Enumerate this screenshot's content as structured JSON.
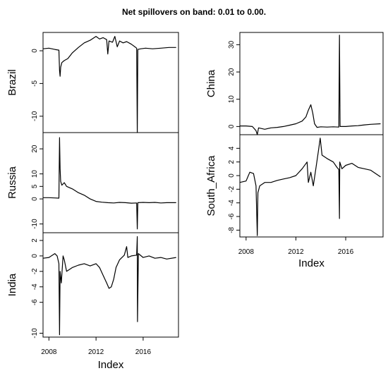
{
  "title": "Net spillovers on band: 0.01 to 0.00.",
  "chart_data": [
    {
      "type": "line",
      "ylabel": "Brazil",
      "xlim": [
        2007.5,
        2019.0
      ],
      "ylim": [
        -12.5,
        2.8
      ],
      "yticks": [
        0,
        -5,
        -10
      ],
      "xticks": [],
      "points": [
        [
          2007.5,
          0.3
        ],
        [
          2008.0,
          0.4
        ],
        [
          2008.5,
          0.2
        ],
        [
          2008.85,
          0.1
        ],
        [
          2008.9,
          -3.0
        ],
        [
          2008.95,
          -3.9
        ],
        [
          2009.0,
          -2.5
        ],
        [
          2009.1,
          -1.8
        ],
        [
          2009.3,
          -1.5
        ],
        [
          2009.6,
          -1.2
        ],
        [
          2010.0,
          -0.3
        ],
        [
          2010.5,
          0.5
        ],
        [
          2011.0,
          1.2
        ],
        [
          2011.5,
          1.6
        ],
        [
          2012.0,
          2.2
        ],
        [
          2012.3,
          1.8
        ],
        [
          2012.6,
          2.0
        ],
        [
          2012.9,
          1.7
        ],
        [
          2013.0,
          -0.5
        ],
        [
          2013.1,
          1.5
        ],
        [
          2013.4,
          1.3
        ],
        [
          2013.6,
          2.2
        ],
        [
          2013.8,
          0.6
        ],
        [
          2014.0,
          1.5
        ],
        [
          2014.3,
          1.2
        ],
        [
          2014.6,
          1.4
        ],
        [
          2015.0,
          1.0
        ],
        [
          2015.3,
          0.6
        ],
        [
          2015.45,
          0.4
        ],
        [
          2015.5,
          -12.5
        ],
        [
          2015.55,
          0.2
        ],
        [
          2015.8,
          0.3
        ],
        [
          2016.2,
          0.4
        ],
        [
          2016.8,
          0.3
        ],
        [
          2017.5,
          0.4
        ],
        [
          2018.2,
          0.5
        ],
        [
          2018.8,
          0.5
        ]
      ]
    },
    {
      "type": "line",
      "ylabel": "Russia",
      "xlim": [
        2007.5,
        2019.0
      ],
      "ylim": [
        -13.5,
        26.5
      ],
      "yticks": [
        20,
        10,
        5,
        0,
        -10
      ],
      "xticks": [],
      "points": [
        [
          2007.5,
          0.5
        ],
        [
          2008.0,
          0.5
        ],
        [
          2008.5,
          0.4
        ],
        [
          2008.85,
          0.3
        ],
        [
          2008.9,
          24.5
        ],
        [
          2008.95,
          12.0
        ],
        [
          2009.0,
          7.0
        ],
        [
          2009.1,
          5.5
        ],
        [
          2009.3,
          6.5
        ],
        [
          2009.5,
          5.0
        ],
        [
          2010.0,
          4.0
        ],
        [
          2010.5,
          2.5
        ],
        [
          2011.0,
          1.5
        ],
        [
          2011.5,
          0.0
        ],
        [
          2012.0,
          -1.0
        ],
        [
          2012.5,
          -1.3
        ],
        [
          2013.0,
          -1.5
        ],
        [
          2013.5,
          -1.6
        ],
        [
          2014.0,
          -1.4
        ],
        [
          2014.5,
          -1.5
        ],
        [
          2015.0,
          -1.7
        ],
        [
          2015.45,
          -1.6
        ],
        [
          2015.5,
          -12.0
        ],
        [
          2015.55,
          -1.5
        ],
        [
          2016.0,
          -1.4
        ],
        [
          2016.5,
          -1.5
        ],
        [
          2017.0,
          -1.4
        ],
        [
          2017.5,
          -1.6
        ],
        [
          2018.0,
          -1.5
        ],
        [
          2018.8,
          -1.5
        ]
      ]
    },
    {
      "type": "line",
      "ylabel": "India",
      "xlim": [
        2007.5,
        2019.0
      ],
      "ylim": [
        -10.5,
        3.0
      ],
      "yticks": [
        2,
        0,
        -2,
        -4,
        -6,
        -10
      ],
      "xticks": [
        "2008",
        "2012",
        "2016"
      ],
      "xtick_values": [
        2008,
        2012,
        2016
      ],
      "xlabel": "Index",
      "points": [
        [
          2007.5,
          -0.3
        ],
        [
          2008.0,
          -0.2
        ],
        [
          2008.5,
          0.3
        ],
        [
          2008.7,
          0.0
        ],
        [
          2008.85,
          -1.0
        ],
        [
          2008.9,
          -10.2
        ],
        [
          2008.95,
          -2.0
        ],
        [
          2009.05,
          -3.5
        ],
        [
          2009.2,
          0.0
        ],
        [
          2009.3,
          -0.5
        ],
        [
          2009.5,
          -2.0
        ],
        [
          2010.0,
          -1.5
        ],
        [
          2010.5,
          -1.2
        ],
        [
          2011.0,
          -1.0
        ],
        [
          2011.5,
          -1.3
        ],
        [
          2012.0,
          -1.0
        ],
        [
          2012.3,
          -1.5
        ],
        [
          2012.6,
          -2.5
        ],
        [
          2012.9,
          -3.5
        ],
        [
          2013.1,
          -4.2
        ],
        [
          2013.3,
          -4.0
        ],
        [
          2013.5,
          -3.0
        ],
        [
          2013.7,
          -1.5
        ],
        [
          2014.0,
          -0.5
        ],
        [
          2014.4,
          0.1
        ],
        [
          2014.6,
          1.2
        ],
        [
          2014.7,
          -0.2
        ],
        [
          2015.0,
          0.0
        ],
        [
          2015.45,
          0.1
        ],
        [
          2015.5,
          2.5
        ],
        [
          2015.52,
          -8.5
        ],
        [
          2015.6,
          0.3
        ],
        [
          2016.0,
          -0.2
        ],
        [
          2016.5,
          0.0
        ],
        [
          2017.0,
          -0.3
        ],
        [
          2017.5,
          -0.2
        ],
        [
          2018.0,
          -0.4
        ],
        [
          2018.8,
          -0.2
        ]
      ]
    },
    {
      "type": "line",
      "ylabel": "China",
      "xlim": [
        2007.5,
        2019.0
      ],
      "ylim": [
        -3.0,
        34.5
      ],
      "yticks": [
        30,
        20,
        10,
        0
      ],
      "xticks": [],
      "points": [
        [
          2007.5,
          0.2
        ],
        [
          2008.0,
          0.2
        ],
        [
          2008.5,
          0.0
        ],
        [
          2008.8,
          -1.5
        ],
        [
          2008.9,
          -3.0
        ],
        [
          2009.0,
          -0.5
        ],
        [
          2009.5,
          -1.0
        ],
        [
          2010.0,
          -0.5
        ],
        [
          2010.5,
          -0.3
        ],
        [
          2011.0,
          0.0
        ],
        [
          2011.5,
          0.5
        ],
        [
          2012.0,
          1.0
        ],
        [
          2012.5,
          2.0
        ],
        [
          2012.8,
          3.5
        ],
        [
          2013.0,
          6.0
        ],
        [
          2013.2,
          8.0
        ],
        [
          2013.35,
          5.0
        ],
        [
          2013.5,
          1.0
        ],
        [
          2013.7,
          -0.3
        ],
        [
          2014.0,
          -0.1
        ],
        [
          2014.5,
          -0.2
        ],
        [
          2015.0,
          -0.1
        ],
        [
          2015.45,
          -0.2
        ],
        [
          2015.5,
          33.5
        ],
        [
          2015.55,
          0.0
        ],
        [
          2016.0,
          0.0
        ],
        [
          2016.5,
          0.2
        ],
        [
          2017.0,
          0.3
        ],
        [
          2017.5,
          0.6
        ],
        [
          2018.0,
          0.8
        ],
        [
          2018.8,
          1.0
        ]
      ]
    },
    {
      "type": "line",
      "ylabel": "South_Africa",
      "xlim": [
        2007.5,
        2019.0
      ],
      "ylim": [
        -9.0,
        6.0
      ],
      "yticks": [
        4,
        2,
        0,
        -2,
        -4,
        -6,
        -8
      ],
      "xticks": [
        "2008",
        "2012",
        "2016"
      ],
      "xtick_values": [
        2008,
        2012,
        2016
      ],
      "xlabel": "Index",
      "points": [
        [
          2007.5,
          -1.0
        ],
        [
          2008.0,
          -0.8
        ],
        [
          2008.3,
          0.5
        ],
        [
          2008.6,
          0.3
        ],
        [
          2008.8,
          -1.5
        ],
        [
          2008.9,
          -8.8
        ],
        [
          2008.95,
          -2.5
        ],
        [
          2009.1,
          -1.5
        ],
        [
          2009.5,
          -1.0
        ],
        [
          2010.0,
          -1.0
        ],
        [
          2010.5,
          -0.7
        ],
        [
          2011.0,
          -0.5
        ],
        [
          2011.5,
          -0.3
        ],
        [
          2012.0,
          0.0
        ],
        [
          2012.5,
          1.0
        ],
        [
          2012.9,
          2.0
        ],
        [
          2013.0,
          -1.0
        ],
        [
          2013.2,
          0.5
        ],
        [
          2013.4,
          -1.5
        ],
        [
          2013.6,
          1.0
        ],
        [
          2013.8,
          3.5
        ],
        [
          2013.95,
          5.5
        ],
        [
          2014.1,
          3.0
        ],
        [
          2014.5,
          2.5
        ],
        [
          2015.0,
          2.0
        ],
        [
          2015.3,
          1.2
        ],
        [
          2015.45,
          0.9
        ],
        [
          2015.5,
          -6.3
        ],
        [
          2015.52,
          2.0
        ],
        [
          2015.7,
          1.0
        ],
        [
          2016.0,
          1.5
        ],
        [
          2016.5,
          1.8
        ],
        [
          2017.0,
          1.2
        ],
        [
          2017.5,
          1.0
        ],
        [
          2018.0,
          0.8
        ],
        [
          2018.8,
          -0.2
        ]
      ]
    }
  ]
}
